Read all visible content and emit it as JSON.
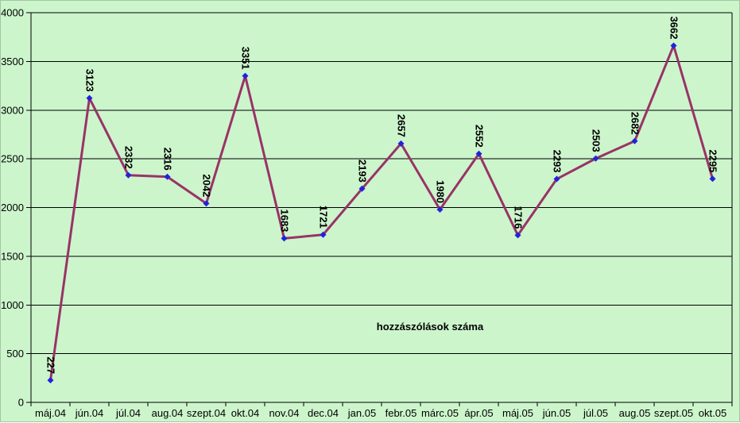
{
  "chart_data": {
    "type": "line",
    "title": "",
    "annotation": "hozzászólások száma",
    "categories": [
      "máj.04",
      "jún.04",
      "júl.04",
      "aug.04",
      "szept.04",
      "okt.04",
      "nov.04",
      "dec.04",
      "jan.05",
      "febr.05",
      "márc.05",
      "ápr.05",
      "máj.05",
      "jún.05",
      "júl.05",
      "aug.05",
      "szept.05",
      "okt.05"
    ],
    "series": [
      {
        "name": "hozzászólások száma",
        "values": [
          227,
          3123,
          2332,
          2316,
          2042,
          3351,
          1683,
          1721,
          2193,
          2657,
          1980,
          2552,
          1716,
          2293,
          2503,
          2682,
          3662,
          2295
        ]
      }
    ],
    "data_labels_visible": true,
    "data_label_rotation_deg": 90,
    "xlabel": "",
    "ylabel": "",
    "ylim": [
      0,
      4000
    ],
    "yticks": [
      "0",
      "500",
      "1000",
      "1500",
      "2000",
      "2500",
      "3000",
      "3500",
      "4000"
    ],
    "grid": "horizontal",
    "legend": "none",
    "marker_shape": "diamond",
    "colors": {
      "background": "#ccf5cc",
      "line": "#993366",
      "marker": "#2222dd",
      "grid": "#000000",
      "axis": "#000000",
      "text": "#000000"
    }
  }
}
